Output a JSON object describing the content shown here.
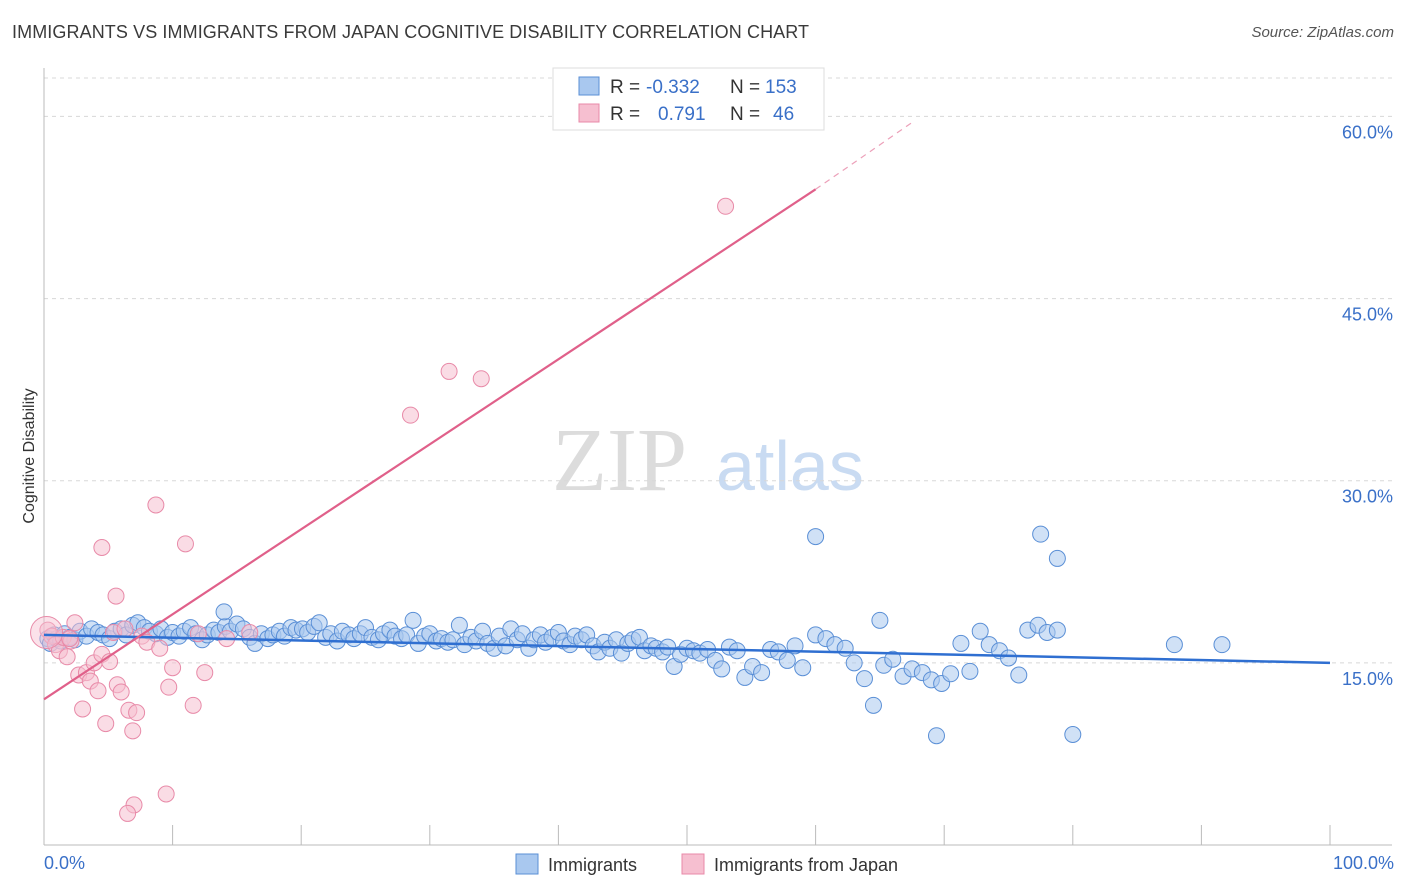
{
  "header": {
    "title": "IMMIGRANTS VS IMMIGRANTS FROM JAPAN COGNITIVE DISABILITY CORRELATION CHART",
    "source": "Source: ZipAtlas.com"
  },
  "watermark": {
    "zip": "ZIP",
    "atlas": "atlas"
  },
  "legend_top": {
    "rows": [
      {
        "r_label": "R = ",
        "r_value": "-0.332",
        "n_label": "N = ",
        "n_value": "153"
      },
      {
        "r_label": "R = ",
        "r_value": "0.791",
        "n_label": "N = ",
        "n_value": "46"
      }
    ]
  },
  "legend_bottom": {
    "items": [
      "Immigrants",
      "Immigrants from Japan"
    ]
  },
  "colors": {
    "blue_fill": "#a9c8ef",
    "blue_stroke": "#5a8fd6",
    "blue_line": "#2f6fd1",
    "pink_fill": "#f6bfd0",
    "pink_stroke": "#e88aa8",
    "pink_line": "#e0608a",
    "value_text": "#3a70c8",
    "grid": "#d8d8d8"
  },
  "chart_data": {
    "type": "scatter",
    "title": "IMMIGRANTS VS IMMIGRANTS FROM JAPAN COGNITIVE DISABILITY CORRELATION CHART",
    "xlabel": "",
    "ylabel": "Cognitive Disability",
    "xlim": [
      0,
      100
    ],
    "ylim": [
      0,
      63
    ],
    "x_tick_labels": [
      "0.0%",
      "100.0%"
    ],
    "y_ticks": [
      15,
      30,
      45,
      60
    ],
    "y_tick_labels": [
      "15.0%",
      "30.0%",
      "45.0%",
      "60.0%"
    ],
    "grid": true,
    "legend_position": "top-center",
    "series": [
      {
        "name": "Immigrants",
        "r": -0.332,
        "n": 153,
        "trend": {
          "x0": 0,
          "y0": 17.3,
          "x1": 100,
          "y1": 15.0
        },
        "points": [
          [
            0.3,
            17.0
          ],
          [
            0.5,
            16.6
          ],
          [
            0.8,
            17.3
          ],
          [
            1.0,
            17.0
          ],
          [
            1.3,
            16.8
          ],
          [
            1.6,
            17.4
          ],
          [
            2.0,
            17.1
          ],
          [
            2.4,
            16.9
          ],
          [
            2.8,
            17.6
          ],
          [
            3.3,
            17.2
          ],
          [
            3.7,
            17.8
          ],
          [
            4.2,
            17.5
          ],
          [
            4.6,
            17.3
          ],
          [
            5.1,
            17.0
          ],
          [
            5.5,
            17.6
          ],
          [
            6.0,
            17.8
          ],
          [
            6.4,
            17.3
          ],
          [
            6.9,
            18.1
          ],
          [
            7.3,
            18.3
          ],
          [
            7.8,
            17.9
          ],
          [
            8.2,
            17.6
          ],
          [
            8.7,
            17.4
          ],
          [
            9.1,
            17.8
          ],
          [
            9.6,
            17.1
          ],
          [
            10.0,
            17.5
          ],
          [
            10.5,
            17.2
          ],
          [
            10.9,
            17.6
          ],
          [
            11.4,
            17.9
          ],
          [
            11.8,
            17.4
          ],
          [
            12.3,
            16.9
          ],
          [
            12.7,
            17.3
          ],
          [
            13.2,
            17.7
          ],
          [
            13.6,
            17.5
          ],
          [
            14.1,
            18.0
          ],
          [
            14.5,
            17.6
          ],
          [
            14.0,
            19.2
          ],
          [
            15.0,
            18.2
          ],
          [
            15.5,
            17.8
          ],
          [
            16.0,
            17.1
          ],
          [
            16.4,
            16.6
          ],
          [
            16.9,
            17.4
          ],
          [
            17.4,
            17.0
          ],
          [
            17.8,
            17.3
          ],
          [
            18.3,
            17.6
          ],
          [
            18.7,
            17.2
          ],
          [
            19.2,
            17.9
          ],
          [
            19.6,
            17.7
          ],
          [
            20.1,
            17.8
          ],
          [
            20.5,
            17.5
          ],
          [
            21.0,
            18.0
          ],
          [
            21.4,
            18.3
          ],
          [
            21.9,
            17.1
          ],
          [
            22.3,
            17.4
          ],
          [
            22.8,
            16.8
          ],
          [
            23.2,
            17.6
          ],
          [
            23.7,
            17.3
          ],
          [
            24.1,
            17.0
          ],
          [
            24.6,
            17.4
          ],
          [
            25.0,
            17.9
          ],
          [
            25.5,
            17.1
          ],
          [
            26.0,
            16.9
          ],
          [
            26.4,
            17.4
          ],
          [
            26.9,
            17.7
          ],
          [
            27.3,
            17.2
          ],
          [
            27.8,
            17.0
          ],
          [
            28.2,
            17.3
          ],
          [
            28.7,
            18.5
          ],
          [
            29.1,
            16.6
          ],
          [
            29.6,
            17.2
          ],
          [
            30.0,
            17.4
          ],
          [
            30.5,
            16.8
          ],
          [
            30.9,
            17.0
          ],
          [
            31.4,
            16.7
          ],
          [
            31.8,
            16.9
          ],
          [
            32.3,
            18.1
          ],
          [
            32.7,
            16.5
          ],
          [
            33.2,
            17.1
          ],
          [
            33.6,
            16.8
          ],
          [
            34.1,
            17.6
          ],
          [
            34.5,
            16.6
          ],
          [
            35.0,
            16.2
          ],
          [
            35.4,
            17.2
          ],
          [
            35.9,
            16.4
          ],
          [
            36.3,
            17.8
          ],
          [
            36.8,
            16.9
          ],
          [
            37.2,
            17.4
          ],
          [
            37.7,
            16.2
          ],
          [
            38.1,
            16.9
          ],
          [
            38.6,
            17.3
          ],
          [
            39.0,
            16.7
          ],
          [
            39.5,
            17.1
          ],
          [
            40.0,
            17.5
          ],
          [
            40.4,
            16.8
          ],
          [
            40.9,
            16.5
          ],
          [
            41.3,
            17.2
          ],
          [
            41.8,
            16.9
          ],
          [
            42.2,
            17.3
          ],
          [
            42.7,
            16.4
          ],
          [
            43.1,
            15.9
          ],
          [
            43.6,
            16.7
          ],
          [
            44.0,
            16.2
          ],
          [
            44.5,
            16.9
          ],
          [
            44.9,
            15.8
          ],
          [
            45.4,
            16.6
          ],
          [
            45.8,
            16.9
          ],
          [
            46.3,
            17.1
          ],
          [
            46.7,
            16.0
          ],
          [
            47.2,
            16.4
          ],
          [
            47.6,
            16.2
          ],
          [
            48.1,
            15.9
          ],
          [
            48.5,
            16.3
          ],
          [
            49.0,
            14.7
          ],
          [
            49.5,
            15.7
          ],
          [
            50.0,
            16.2
          ],
          [
            50.5,
            16.0
          ],
          [
            51.0,
            15.8
          ],
          [
            51.6,
            16.1
          ],
          [
            52.2,
            15.2
          ],
          [
            52.7,
            14.5
          ],
          [
            53.3,
            16.3
          ],
          [
            53.9,
            16.0
          ],
          [
            54.5,
            13.8
          ],
          [
            55.1,
            14.7
          ],
          [
            55.8,
            14.2
          ],
          [
            56.5,
            16.1
          ],
          [
            57.1,
            15.9
          ],
          [
            57.8,
            15.2
          ],
          [
            58.4,
            16.4
          ],
          [
            59.0,
            14.6
          ],
          [
            60.0,
            17.3
          ],
          [
            60.8,
            17.0
          ],
          [
            61.5,
            16.5
          ],
          [
            62.3,
            16.2
          ],
          [
            63.0,
            15.0
          ],
          [
            63.8,
            13.7
          ],
          [
            64.5,
            11.5
          ],
          [
            65.3,
            14.8
          ],
          [
            66.0,
            15.3
          ],
          [
            66.8,
            13.9
          ],
          [
            67.5,
            14.5
          ],
          [
            68.3,
            14.2
          ],
          [
            69.0,
            13.6
          ],
          [
            69.8,
            13.3
          ],
          [
            70.5,
            14.1
          ],
          [
            71.3,
            16.6
          ],
          [
            72.0,
            14.3
          ],
          [
            72.8,
            17.6
          ],
          [
            73.5,
            16.5
          ],
          [
            74.3,
            16.0
          ],
          [
            75.0,
            15.4
          ],
          [
            75.8,
            14.0
          ],
          [
            76.5,
            17.7
          ],
          [
            77.3,
            18.1
          ],
          [
            78.0,
            17.5
          ],
          [
            78.8,
            17.7
          ],
          [
            60.0,
            25.4
          ],
          [
            77.5,
            25.6
          ],
          [
            78.8,
            23.6
          ],
          [
            65.0,
            18.5
          ],
          [
            69.4,
            9.0
          ],
          [
            80.0,
            9.1
          ],
          [
            87.9,
            16.5
          ],
          [
            91.6,
            16.5
          ]
        ]
      },
      {
        "name": "Immigrants from Japan",
        "r": 0.791,
        "n": 46,
        "trend": {
          "x0": 0,
          "y0": 12.0,
          "x1": 60.0,
          "y1": 54.0
        },
        "trend_dashed": {
          "x0": 60.0,
          "y0": 54.0,
          "x1": 67.5,
          "y1": 59.5
        },
        "points": [
          [
            0.3,
            17.7
          ],
          [
            0.6,
            17.2
          ],
          [
            0.9,
            16.5
          ],
          [
            1.2,
            16.0
          ],
          [
            1.5,
            17.1
          ],
          [
            1.8,
            15.5
          ],
          [
            2.1,
            16.8
          ],
          [
            2.4,
            18.3
          ],
          [
            2.7,
            14.0
          ],
          [
            3.0,
            11.2
          ],
          [
            3.3,
            14.2
          ],
          [
            3.6,
            13.5
          ],
          [
            3.9,
            15.0
          ],
          [
            4.2,
            12.7
          ],
          [
            4.5,
            15.7
          ],
          [
            4.8,
            10.0
          ],
          [
            5.1,
            15.1
          ],
          [
            5.4,
            17.5
          ],
          [
            5.7,
            13.2
          ],
          [
            6.0,
            12.6
          ],
          [
            6.3,
            17.8
          ],
          [
            6.6,
            11.1
          ],
          [
            6.9,
            9.4
          ],
          [
            7.2,
            10.9
          ],
          [
            7.6,
            17.2
          ],
          [
            8.0,
            16.7
          ],
          [
            4.5,
            24.5
          ],
          [
            5.6,
            20.5
          ],
          [
            8.7,
            28.0
          ],
          [
            11.0,
            24.8
          ],
          [
            9.0,
            16.2
          ],
          [
            9.7,
            13.0
          ],
          [
            10.0,
            14.6
          ],
          [
            11.6,
            11.5
          ],
          [
            12.0,
            17.4
          ],
          [
            12.5,
            14.2
          ],
          [
            14.2,
            17.0
          ],
          [
            16.0,
            17.5
          ],
          [
            7.0,
            3.3
          ],
          [
            6.5,
            2.6
          ],
          [
            9.5,
            4.2
          ],
          [
            28.5,
            35.4
          ],
          [
            31.5,
            39.0
          ],
          [
            34.0,
            38.4
          ],
          [
            53.0,
            52.6
          ],
          [
            2.0,
            17.0
          ]
        ]
      }
    ]
  }
}
